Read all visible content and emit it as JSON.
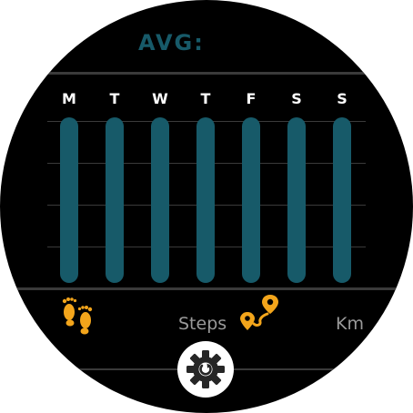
{
  "header": {
    "avg_label": "AVG:"
  },
  "chart_data": {
    "type": "bar",
    "categories": [
      "M",
      "T",
      "W",
      "T",
      "F",
      "S",
      "S"
    ],
    "values": [
      1,
      1,
      1,
      1,
      1,
      1,
      1
    ],
    "ylim": [
      0,
      1
    ],
    "title": "",
    "xlabel": "",
    "ylabel": ""
  },
  "metrics": {
    "steps_label": "Steps",
    "km_label": "Km",
    "steps_icon": "footprints-icon",
    "distance_icon": "route-pin-icon"
  },
  "settings": {
    "icon": "gear-icon"
  },
  "colors": {
    "bar": "#175a69",
    "accent": "#f3a51b",
    "background": "#000000",
    "text_muted": "#9a9a9a"
  }
}
